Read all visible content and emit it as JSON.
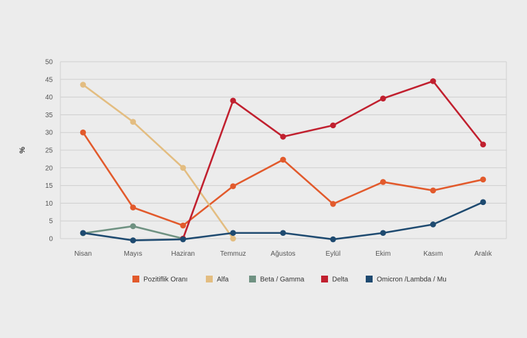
{
  "chart_data": {
    "type": "line",
    "title": "",
    "xlabel": "",
    "ylabel": "%",
    "ylim": [
      0,
      50
    ],
    "yticks": [
      0,
      5,
      10,
      15,
      20,
      25,
      30,
      35,
      40,
      45,
      50
    ],
    "grid": true,
    "legend_position": "bottom",
    "categories": [
      "Nisan",
      "Mayıs",
      "Haziran",
      "Temmuz",
      "Ağustos",
      "Eylül",
      "Ekim",
      "Kasım",
      "Aralık"
    ],
    "series": [
      {
        "name": "Pozitiflik Oranı",
        "color": "#e25a2c",
        "values": [
          30,
          8.8,
          3.7,
          14.8,
          22.3,
          9.8,
          16,
          13.6,
          16.7
        ]
      },
      {
        "name": "Alfa",
        "color": "#e3bd81",
        "values": [
          43.5,
          33,
          20,
          0,
          null,
          null,
          null,
          null,
          null
        ]
      },
      {
        "name": "Beta / Gamma",
        "color": "#6f9282",
        "values": [
          1.5,
          3.5,
          0,
          null,
          null,
          null,
          null,
          null,
          null
        ]
      },
      {
        "name": "Delta",
        "color": "#c1202f",
        "values": [
          null,
          null,
          0,
          39,
          28.8,
          32,
          39.6,
          44.5,
          26.6
        ]
      },
      {
        "name": "Omicron /Lambda / Mu",
        "color": "#1e4a70",
        "values": [
          1.6,
          -0.5,
          -0.2,
          1.6,
          1.6,
          -0.2,
          1.6,
          4,
          10.3
        ]
      }
    ]
  }
}
